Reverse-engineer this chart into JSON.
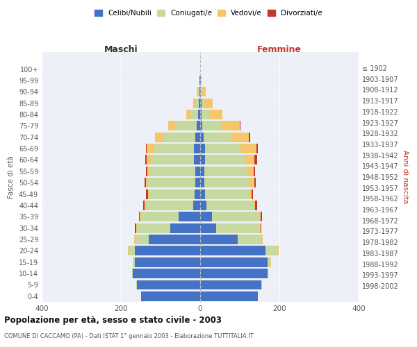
{
  "age_groups": [
    "0-4",
    "5-9",
    "10-14",
    "15-19",
    "20-24",
    "25-29",
    "30-34",
    "35-39",
    "40-44",
    "45-49",
    "50-54",
    "55-59",
    "60-64",
    "65-69",
    "70-74",
    "75-79",
    "80-84",
    "85-89",
    "90-94",
    "95-99",
    "100+"
  ],
  "birth_years": [
    "1998-2002",
    "1993-1997",
    "1988-1992",
    "1983-1987",
    "1978-1982",
    "1973-1977",
    "1968-1972",
    "1963-1967",
    "1958-1962",
    "1953-1957",
    "1948-1952",
    "1943-1947",
    "1938-1942",
    "1933-1937",
    "1928-1932",
    "1923-1927",
    "1918-1922",
    "1913-1917",
    "1908-1912",
    "1903-1907",
    "≤ 1902"
  ],
  "male_celibe": [
    150,
    160,
    170,
    165,
    165,
    130,
    75,
    55,
    18,
    14,
    12,
    12,
    15,
    15,
    12,
    8,
    5,
    3,
    2,
    1,
    0
  ],
  "male_coniugato": [
    0,
    1,
    2,
    5,
    15,
    35,
    85,
    95,
    120,
    115,
    120,
    115,
    110,
    100,
    80,
    55,
    20,
    10,
    4,
    1,
    0
  ],
  "male_vedovo": [
    0,
    0,
    0,
    1,
    2,
    2,
    2,
    2,
    2,
    2,
    4,
    6,
    10,
    20,
    22,
    18,
    10,
    5,
    2,
    0,
    0
  ],
  "male_divorziato": [
    0,
    0,
    0,
    0,
    0,
    0,
    3,
    2,
    3,
    5,
    4,
    4,
    3,
    2,
    0,
    0,
    0,
    0,
    1,
    0,
    0
  ],
  "female_celibe": [
    145,
    155,
    170,
    170,
    165,
    95,
    40,
    30,
    16,
    12,
    10,
    10,
    12,
    12,
    8,
    5,
    4,
    3,
    2,
    1,
    0
  ],
  "female_coniugata": [
    0,
    1,
    2,
    8,
    30,
    60,
    110,
    120,
    118,
    110,
    115,
    110,
    100,
    90,
    70,
    50,
    18,
    8,
    4,
    1,
    0
  ],
  "female_vedova": [
    0,
    0,
    0,
    1,
    3,
    3,
    3,
    3,
    5,
    8,
    12,
    15,
    25,
    40,
    45,
    45,
    35,
    20,
    8,
    1,
    0
  ],
  "female_divorziata": [
    0,
    0,
    0,
    0,
    0,
    0,
    2,
    3,
    4,
    4,
    4,
    3,
    6,
    3,
    3,
    2,
    0,
    0,
    0,
    0,
    0
  ],
  "colors": {
    "celibe": "#4472c4",
    "coniugato": "#c5d9a0",
    "vedovo": "#f5c76a",
    "divorziato": "#c0392b"
  },
  "title": "Popolazione per età, sesso e stato civile - 2003",
  "subtitle": "COMUNE DI CACCAMO (PA) - Dati ISTAT 1° gennaio 2003 - Elaborazione TUTTITALIA.IT",
  "xlabel_left": "Maschi",
  "xlabel_right": "Femmine",
  "ylabel_left": "Fasce di età",
  "ylabel_right": "Anni di nascita",
  "xlim": 400,
  "bg_color": "#edf1f7",
  "legend_labels": [
    "Celibi/Nubili",
    "Coniugati/e",
    "Vedovi/e",
    "Divorziati/e"
  ]
}
